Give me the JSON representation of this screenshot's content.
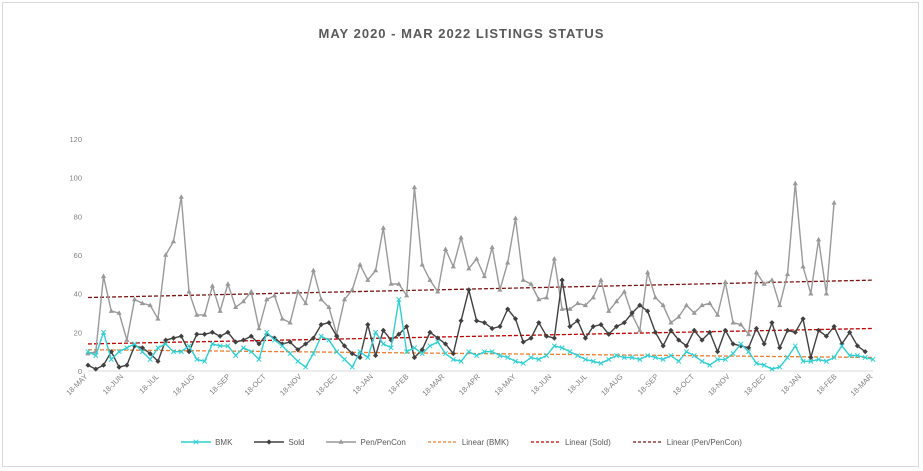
{
  "chart_data": {
    "type": "line",
    "title": "MAY 2020 - MAR 2022 LISTINGS STATUS",
    "xlabel": "",
    "ylabel": "",
    "ylim": [
      0,
      120
    ],
    "y_ticks": [
      0,
      20,
      40,
      60,
      80,
      100,
      120
    ],
    "x_tick_labels": [
      "18-MAY",
      "18-JUN",
      "18-JUL",
      "18-AUG",
      "18-SEP",
      "18-OCT",
      "18-NOV",
      "18-DEC",
      "18-JAN",
      "18-FEB",
      "18-MAR",
      "18-APR",
      "18-MAY",
      "18-JUN",
      "18-JUL",
      "18-AUG",
      "18-SEP",
      "18-OCT",
      "18-NOV",
      "18-DEC",
      "18-JAN",
      "18-FEB",
      "18-MAR"
    ],
    "grid": false,
    "legend_position": "bottom",
    "series": [
      {
        "name": "BMK",
        "color": "#2fcfd4",
        "marker": "x",
        "values": [
          10,
          8,
          20,
          6,
          10,
          12,
          14,
          10,
          6,
          12,
          14,
          10,
          10,
          13,
          6,
          5,
          14,
          13,
          13,
          8,
          12,
          10,
          6,
          20,
          16,
          13,
          9,
          5,
          2,
          9,
          18,
          16,
          10,
          6,
          2,
          10,
          7,
          20,
          14,
          12,
          37,
          10,
          12,
          9,
          13,
          15,
          9,
          6,
          5,
          10,
          8,
          10,
          10,
          8,
          7,
          5,
          4,
          7,
          6,
          8,
          13,
          12,
          10,
          8,
          6,
          5,
          4,
          6,
          8,
          7,
          7,
          6,
          8,
          7,
          6,
          8,
          5,
          10,
          8,
          5,
          3,
          6,
          6,
          9,
          14,
          10,
          4,
          3,
          1,
          2,
          7,
          13,
          5,
          5,
          6,
          5,
          7,
          13,
          8,
          8,
          7,
          6
        ]
      },
      {
        "name": "Sold",
        "color": "#404040",
        "marker": "diamond",
        "values": [
          3,
          1,
          3,
          10,
          2,
          3,
          13,
          12,
          9,
          5,
          16,
          17,
          18,
          10,
          19,
          19,
          20,
          18,
          20,
          15,
          16,
          18,
          14,
          19,
          17,
          14,
          15,
          11,
          14,
          17,
          24,
          25,
          18,
          13,
          9,
          7,
          24,
          8,
          21,
          16,
          19,
          23,
          7,
          11,
          20,
          17,
          14,
          9,
          26,
          42,
          26,
          25,
          22,
          23,
          32,
          27,
          15,
          17,
          25,
          18,
          17,
          47,
          23,
          26,
          17,
          23,
          24,
          19,
          23,
          25,
          30,
          34,
          31,
          20,
          13,
          21,
          16,
          13,
          21,
          16,
          20,
          10,
          21,
          14,
          13,
          12,
          22,
          14,
          25,
          12,
          21,
          20,
          27,
          7,
          21,
          18,
          23,
          14,
          20,
          13,
          10
        ]
      },
      {
        "name": "Pen/PenCon",
        "color": "#999999",
        "marker": "triangle",
        "values": [
          9,
          10,
          49,
          31,
          30,
          16,
          37,
          35,
          34,
          27,
          60,
          67,
          90,
          41,
          29,
          29,
          44,
          31,
          45,
          33,
          36,
          41,
          22,
          37,
          39,
          27,
          25,
          41,
          35,
          52,
          37,
          33,
          19,
          37,
          42,
          55,
          47,
          52,
          74,
          45,
          45,
          39,
          95,
          55,
          47,
          41,
          63,
          54,
          69,
          53,
          58,
          49,
          64,
          42,
          56,
          79,
          47,
          45,
          37,
          38,
          58,
          32,
          32,
          35,
          34,
          38,
          47,
          31,
          36,
          41,
          29,
          21,
          51,
          38,
          34,
          25,
          28,
          34,
          30,
          34,
          35,
          29,
          46,
          25,
          24,
          19,
          51,
          45,
          47,
          34,
          50,
          97,
          54,
          40,
          68,
          40,
          87
        ]
      },
      {
        "name": "Linear (BMK)",
        "color": "#ed7d31",
        "dash": true,
        "trend": [
          11,
          7
        ]
      },
      {
        "name": "Linear (Sold)",
        "color": "#c00000",
        "dash": true,
        "trend": [
          14,
          22
        ]
      },
      {
        "name": "Linear (Pen/PenCon)",
        "color": "#7b1414",
        "dash": true,
        "trend": [
          38,
          47
        ]
      }
    ]
  }
}
